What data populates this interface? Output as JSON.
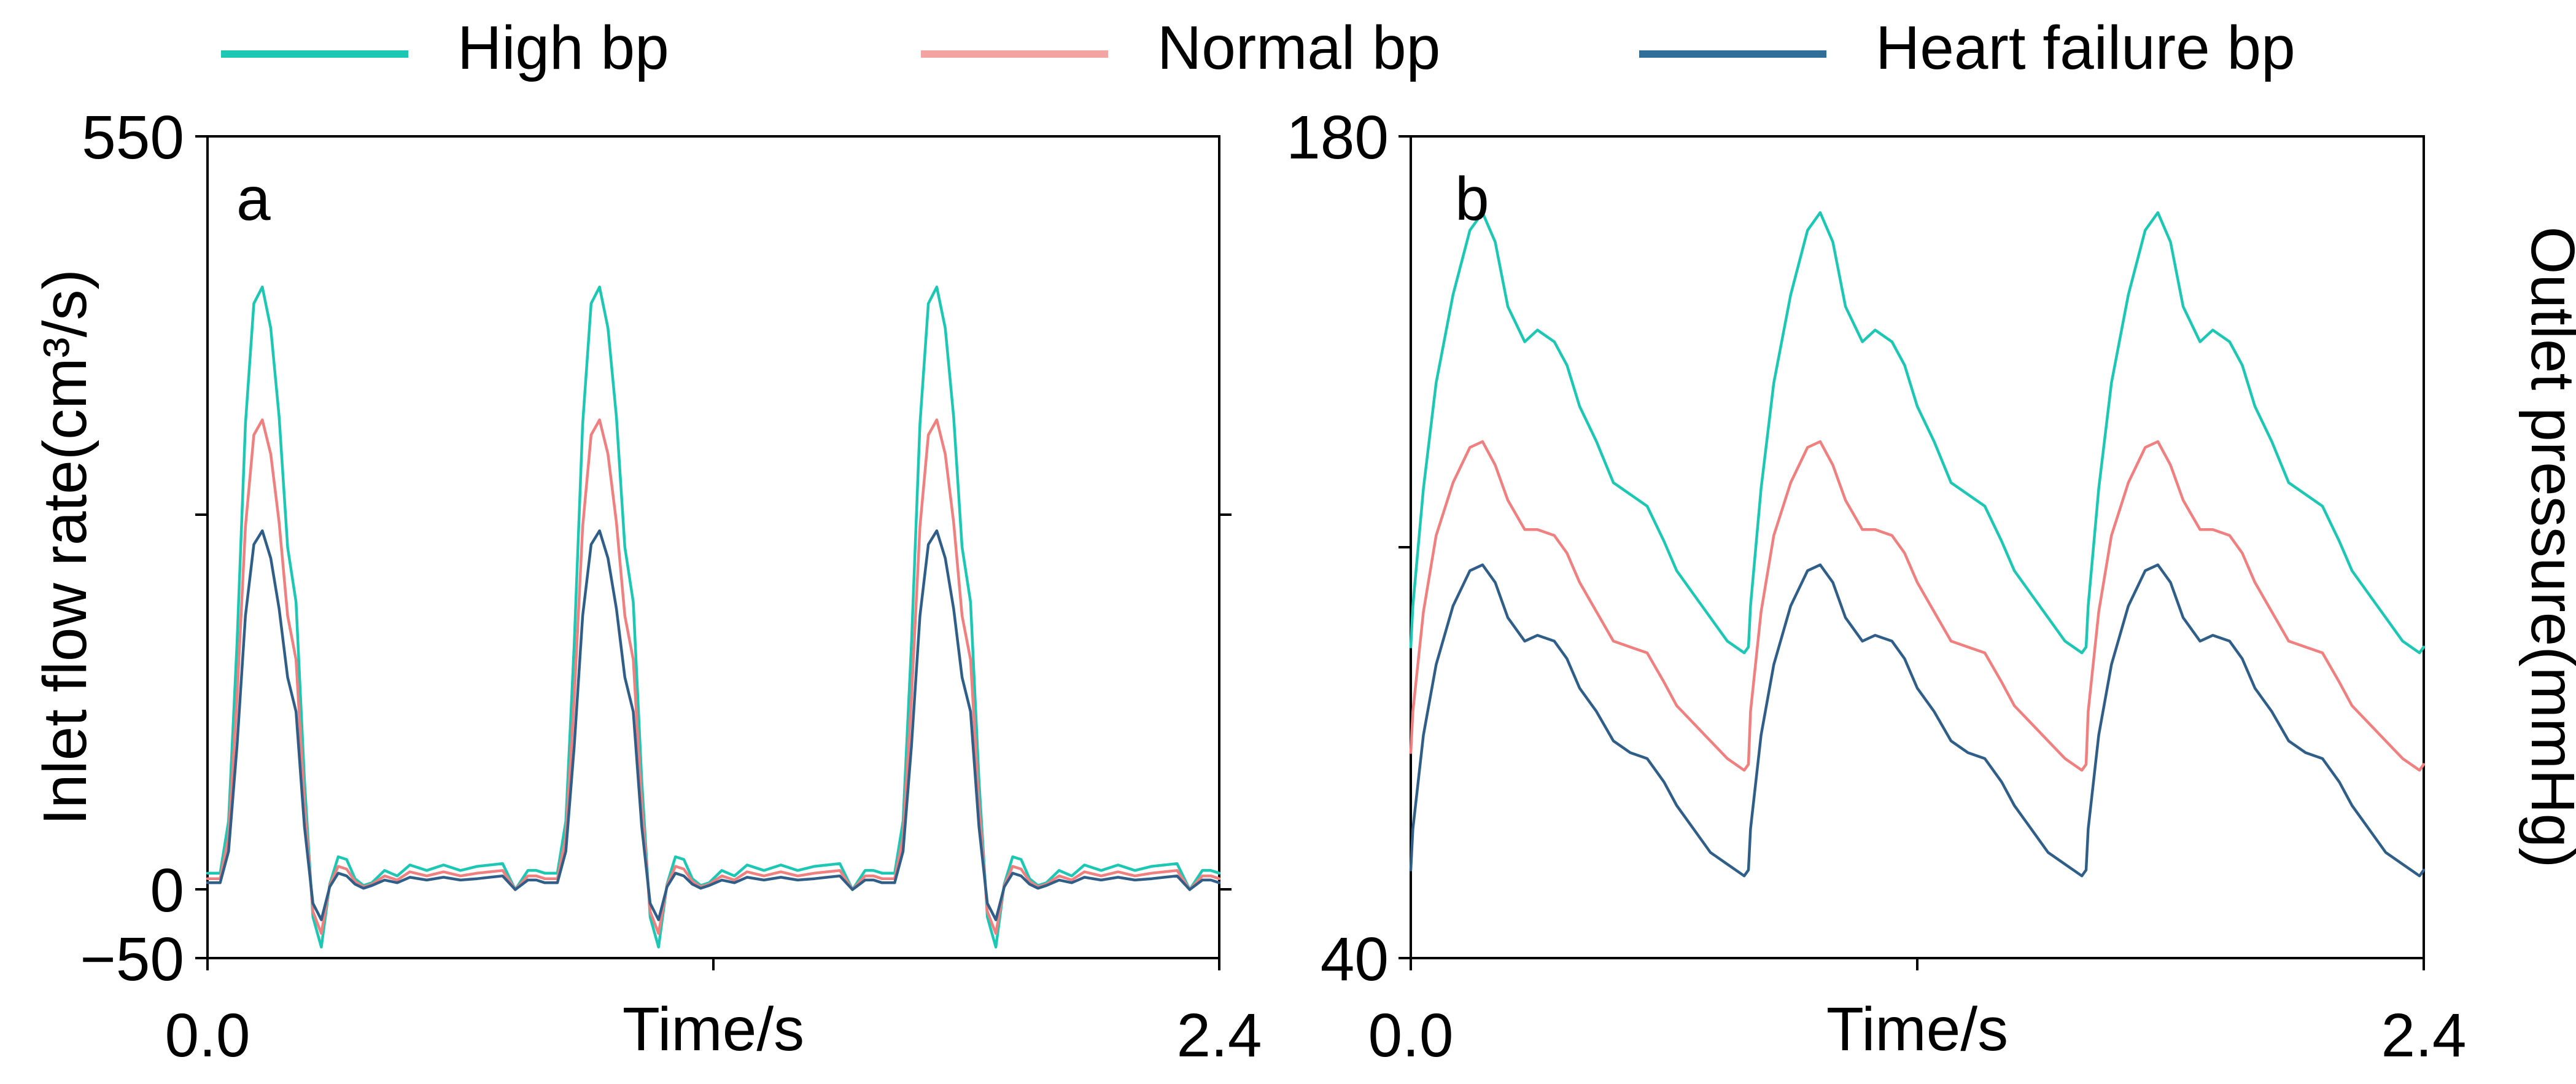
{
  "chart_data": [
    {
      "type": "line",
      "panel_label": "a",
      "ylabel": "Inlet flow rate(cm³/s)",
      "xlabel": "Time/s",
      "xlim": [
        0.0,
        2.4
      ],
      "ylim": [
        -50,
        550
      ],
      "x_tick_labels": [
        "0.0",
        "2.4"
      ],
      "y_tick_labels": [
        "550",
        "0",
        "−50"
      ],
      "grid": false,
      "legend_position": "top",
      "cycle_period": 0.8,
      "x": [
        0.0,
        0.03,
        0.05,
        0.07,
        0.09,
        0.11,
        0.13,
        0.15,
        0.17,
        0.19,
        0.21,
        0.23,
        0.25,
        0.27,
        0.29,
        0.31,
        0.33,
        0.35,
        0.37,
        0.39,
        0.42,
        0.45,
        0.48,
        0.52,
        0.56,
        0.6,
        0.64,
        0.67,
        0.7,
        0.73,
        0.76,
        0.78,
        0.8
      ],
      "series": [
        {
          "name": "High bp",
          "color": "#1cc7b4",
          "values": [
            12,
            12,
            50,
            180,
            340,
            428,
            440,
            410,
            345,
            250,
            210,
            80,
            -20,
            -42,
            4,
            24,
            22,
            8,
            3,
            5,
            14,
            10,
            18,
            14,
            18,
            14,
            17,
            18,
            19,
            0,
            14,
            14,
            12
          ]
        },
        {
          "name": "Normal bp",
          "color": "#f07f7f",
          "values": [
            8,
            8,
            38,
            140,
            265,
            332,
            343,
            318,
            268,
            200,
            168,
            62,
            -16,
            -32,
            3,
            17,
            15,
            6,
            2,
            4,
            10,
            7,
            13,
            10,
            13,
            10,
            12,
            13,
            14,
            0,
            10,
            10,
            8
          ]
        },
        {
          "name": "Heart failure bp",
          "color": "#2f5f88",
          "values": [
            5,
            5,
            28,
            105,
            200,
            252,
            262,
            242,
            205,
            155,
            130,
            46,
            -10,
            -22,
            2,
            12,
            10,
            4,
            1,
            3,
            7,
            5,
            9,
            7,
            9,
            7,
            8,
            9,
            10,
            0,
            7,
            7,
            5
          ]
        }
      ]
    },
    {
      "type": "line",
      "panel_label": "b",
      "ylabel": "Outlet pressure(mmHg)",
      "xlabel": "Time/s",
      "xlim": [
        0.0,
        2.4
      ],
      "ylim": [
        40,
        180
      ],
      "x_tick_labels": [
        "0.0",
        "2.4"
      ],
      "y_tick_labels": [
        "180",
        "40"
      ],
      "grid": false,
      "cycle_period": 0.8,
      "x": [
        0.0,
        0.005,
        0.03,
        0.06,
        0.1,
        0.14,
        0.17,
        0.2,
        0.23,
        0.27,
        0.3,
        0.34,
        0.37,
        0.4,
        0.44,
        0.48,
        0.52,
        0.56,
        0.6,
        0.63,
        0.67,
        0.71,
        0.75,
        0.79,
        0.8
      ],
      "series": [
        {
          "name": "High bp",
          "color": "#1cc7b4",
          "values": [
            93,
            100,
            120,
            138,
            153,
            164,
            167,
            162,
            151,
            145,
            147,
            145,
            141,
            134,
            128,
            121,
            119,
            117,
            111,
            106,
            102,
            98,
            94,
            92,
            93
          ]
        },
        {
          "name": "Normal bp",
          "color": "#f07f7f",
          "values": [
            75,
            82,
            99,
            112,
            121,
            127,
            128,
            124,
            118,
            113,
            113,
            112,
            109,
            104,
            99,
            94,
            93,
            92,
            87,
            83,
            80,
            77,
            74,
            72,
            73
          ]
        },
        {
          "name": "Heart failure bp",
          "color": "#2f5f88",
          "values": [
            55,
            62,
            78,
            90,
            100,
            106,
            107,
            104,
            98,
            94,
            95,
            94,
            91,
            86,
            82,
            77,
            75,
            74,
            70,
            66,
            62,
            58,
            56,
            54,
            55
          ]
        }
      ]
    }
  ],
  "legend": [
    {
      "name": "High bp",
      "color": "#1cc7b4"
    },
    {
      "name": "Normal bp",
      "color": "#f4a3a3"
    },
    {
      "name": "Heart failure bp",
      "color": "#2f6e99"
    }
  ]
}
